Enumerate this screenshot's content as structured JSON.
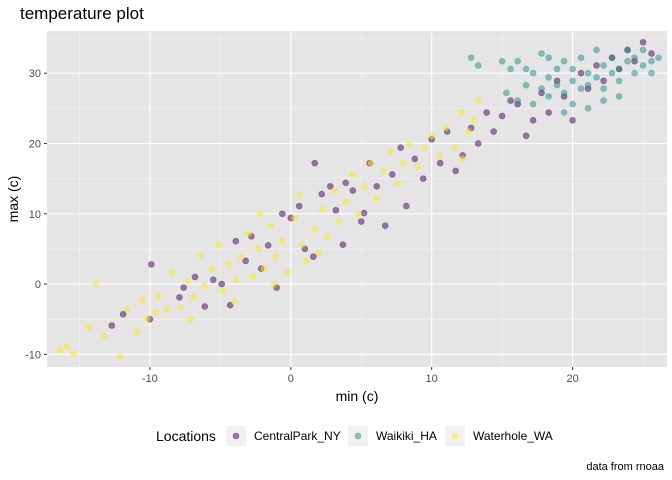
{
  "chart_data": {
    "type": "scatter",
    "title": "temperature plot",
    "xlabel": "min (c)",
    "ylabel": "max (c)",
    "caption": "data from rnoaa",
    "xlim": [
      -17.3,
      26.7
    ],
    "ylim": [
      -11.8,
      36.0
    ],
    "x_ticks": [
      -10,
      0,
      10,
      20
    ],
    "x_tick_labels": [
      "-10",
      "0",
      "10",
      "20"
    ],
    "y_ticks": [
      -10,
      0,
      10,
      20,
      30
    ],
    "y_tick_labels": [
      "-10",
      "0",
      "10",
      "20",
      "30"
    ],
    "grid": true,
    "legend": {
      "title": "Locations",
      "position": "bottom"
    },
    "colors": {
      "panel_background": "#e5e5e5",
      "grid_major": "#ffffff",
      "grid_minor": "#f2f2f2"
    },
    "point_alpha": 0.5,
    "series": [
      {
        "name": "CentralPark_NY",
        "color": "#440154",
        "points": [
          [
            -12.7,
            -5.9
          ],
          [
            -11.9,
            -4.3
          ],
          [
            -10.0,
            -5.0
          ],
          [
            -9.9,
            2.8
          ],
          [
            -7.9,
            -1.9
          ],
          [
            -7.6,
            -0.5
          ],
          [
            -6.8,
            1.0
          ],
          [
            -6.1,
            -3.2
          ],
          [
            -5.5,
            0.6
          ],
          [
            -4.9,
            0.0
          ],
          [
            -4.3,
            -3.0
          ],
          [
            -3.9,
            6.1
          ],
          [
            -3.2,
            3.3
          ],
          [
            -2.8,
            6.8
          ],
          [
            -2.1,
            2.2
          ],
          [
            -1.6,
            5.5
          ],
          [
            -1.0,
            -0.5
          ],
          [
            -0.6,
            10.0
          ],
          [
            0.0,
            9.4
          ],
          [
            0.6,
            11.1
          ],
          [
            1.0,
            5.0
          ],
          [
            1.6,
            3.9
          ],
          [
            1.7,
            17.2
          ],
          [
            2.2,
            12.8
          ],
          [
            2.8,
            13.9
          ],
          [
            3.2,
            10.5
          ],
          [
            3.9,
            14.4
          ],
          [
            3.7,
            5.6
          ],
          [
            4.4,
            13.3
          ],
          [
            5.0,
            8.9
          ],
          [
            5.6,
            17.2
          ],
          [
            5.2,
            10.1
          ],
          [
            6.1,
            13.9
          ],
          [
            6.7,
            8.3
          ],
          [
            7.2,
            15.6
          ],
          [
            7.8,
            19.4
          ],
          [
            8.2,
            11.1
          ],
          [
            8.8,
            17.8
          ],
          [
            9.4,
            15.0
          ],
          [
            10.0,
            20.6
          ],
          [
            10.6,
            17.2
          ],
          [
            11.1,
            21.7
          ],
          [
            11.7,
            16.1
          ],
          [
            12.2,
            18.3
          ],
          [
            12.8,
            22.2
          ],
          [
            13.3,
            20.0
          ],
          [
            13.9,
            24.4
          ],
          [
            14.4,
            21.7
          ],
          [
            15.0,
            23.9
          ],
          [
            15.6,
            26.1
          ],
          [
            16.1,
            25.6
          ],
          [
            16.7,
            21.1
          ],
          [
            17.2,
            23.3
          ],
          [
            17.8,
            27.2
          ],
          [
            18.3,
            24.4
          ],
          [
            18.9,
            28.9
          ],
          [
            19.4,
            26.7
          ],
          [
            20.0,
            23.3
          ],
          [
            20.6,
            30.0
          ],
          [
            21.1,
            27.8
          ],
          [
            21.7,
            31.1
          ],
          [
            22.2,
            28.9
          ],
          [
            22.8,
            32.2
          ],
          [
            23.3,
            30.6
          ],
          [
            23.9,
            33.3
          ],
          [
            24.4,
            31.7
          ],
          [
            25.0,
            34.4
          ],
          [
            25.6,
            32.8
          ]
        ]
      },
      {
        "name": "Waikiki_HA",
        "color": "#21908c",
        "points": [
          [
            12.8,
            32.2
          ],
          [
            13.3,
            31.1
          ],
          [
            15.0,
            31.7
          ],
          [
            15.6,
            30.6
          ],
          [
            15.3,
            27.2
          ],
          [
            16.1,
            26.1
          ],
          [
            16.7,
            28.3
          ],
          [
            16.1,
            31.7
          ],
          [
            17.2,
            30.0
          ],
          [
            17.2,
            25.6
          ],
          [
            17.8,
            27.8
          ],
          [
            17.8,
            32.8
          ],
          [
            18.3,
            29.4
          ],
          [
            18.3,
            26.7
          ],
          [
            18.9,
            30.6
          ],
          [
            18.9,
            28.3
          ],
          [
            19.4,
            27.2
          ],
          [
            19.4,
            31.7
          ],
          [
            20.0,
            28.9
          ],
          [
            20.0,
            30.6
          ],
          [
            20.0,
            25.6
          ],
          [
            20.6,
            27.8
          ],
          [
            20.6,
            32.2
          ],
          [
            21.1,
            30.0
          ],
          [
            21.1,
            28.3
          ],
          [
            21.7,
            29.4
          ],
          [
            21.7,
            33.3
          ],
          [
            22.2,
            31.1
          ],
          [
            22.2,
            27.8
          ],
          [
            22.8,
            30.0
          ],
          [
            22.8,
            32.2
          ],
          [
            23.3,
            30.6
          ],
          [
            23.3,
            28.9
          ],
          [
            23.9,
            31.7
          ],
          [
            23.9,
            33.3
          ],
          [
            24.4,
            30.0
          ],
          [
            24.4,
            32.2
          ],
          [
            25.0,
            31.1
          ],
          [
            25.0,
            33.3
          ],
          [
            25.6,
            31.7
          ],
          [
            25.6,
            30.0
          ],
          [
            26.1,
            32.2
          ],
          [
            19.4,
            24.4
          ],
          [
            21.1,
            25.0
          ],
          [
            16.7,
            30.6
          ],
          [
            18.3,
            32.2
          ],
          [
            22.2,
            26.1
          ],
          [
            23.3,
            26.7
          ]
        ]
      },
      {
        "name": "Waterhole_WA",
        "color": "#fde725",
        "points": [
          [
            -16.4,
            -9.4
          ],
          [
            -15.9,
            -8.9
          ],
          [
            -15.4,
            -9.9
          ],
          [
            -14.3,
            -6.1
          ],
          [
            -13.8,
            0.1
          ],
          [
            -13.2,
            -7.4
          ],
          [
            -12.1,
            -10.4
          ],
          [
            -11.6,
            -3.6
          ],
          [
            -10.9,
            -6.8
          ],
          [
            -10.5,
            -2.2
          ],
          [
            -10.2,
            -4.9
          ],
          [
            -9.4,
            -1.8
          ],
          [
            -8.8,
            -3.6
          ],
          [
            -8.4,
            1.7
          ],
          [
            -7.8,
            -3.3
          ],
          [
            -7.3,
            0.4
          ],
          [
            -6.9,
            -1.9
          ],
          [
            -6.4,
            4.1
          ],
          [
            -6.1,
            -0.3
          ],
          [
            -5.6,
            2.2
          ],
          [
            -5.1,
            5.6
          ],
          [
            -4.8,
            -1.0
          ],
          [
            -4.4,
            2.8
          ],
          [
            -3.9,
            0.6
          ],
          [
            -3.5,
            3.9
          ],
          [
            -3.0,
            7.2
          ],
          [
            -2.7,
            1.1
          ],
          [
            -2.3,
            5.0
          ],
          [
            -1.9,
            2.2
          ],
          [
            -1.4,
            8.3
          ],
          [
            -1.1,
            3.9
          ],
          [
            -0.6,
            6.1
          ],
          [
            -0.2,
            1.7
          ],
          [
            0.3,
            9.4
          ],
          [
            0.8,
            5.6
          ],
          [
            1.1,
            3.3
          ],
          [
            1.7,
            7.8
          ],
          [
            2.2,
            10.6
          ],
          [
            2.6,
            6.7
          ],
          [
            3.1,
            13.3
          ],
          [
            3.4,
            8.9
          ],
          [
            3.9,
            11.7
          ],
          [
            4.4,
            15.6
          ],
          [
            4.8,
            10.0
          ],
          [
            5.2,
            13.9
          ],
          [
            5.7,
            17.2
          ],
          [
            6.1,
            12.2
          ],
          [
            6.6,
            16.1
          ],
          [
            7.1,
            18.9
          ],
          [
            7.6,
            14.4
          ],
          [
            8.0,
            17.2
          ],
          [
            8.4,
            20.0
          ],
          [
            9.0,
            16.7
          ],
          [
            9.5,
            19.4
          ],
          [
            10.0,
            21.1
          ],
          [
            10.6,
            18.3
          ],
          [
            11.0,
            22.2
          ],
          [
            11.6,
            19.4
          ],
          [
            12.1,
            24.4
          ],
          [
            12.6,
            21.7
          ],
          [
            13.0,
            23.3
          ],
          [
            13.3,
            26.1
          ],
          [
            12.2,
            17.8
          ],
          [
            -2.2,
            10.0
          ],
          [
            0.6,
            12.8
          ],
          [
            -9.6,
            -4.0
          ],
          [
            -7.1,
            -5.0
          ],
          [
            -4.0,
            -2.5
          ],
          [
            -1.2,
            0.0
          ],
          [
            2.0,
            4.4
          ]
        ]
      }
    ]
  }
}
